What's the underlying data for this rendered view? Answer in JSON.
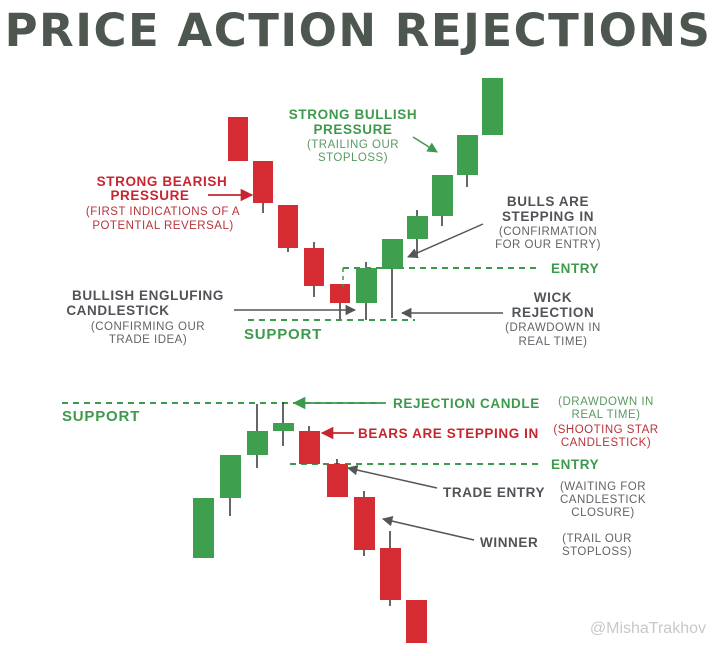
{
  "title": "PRICE ACTION REJECTIONS",
  "top": {
    "strong_bullish": {
      "line1": "STRONG BULLISH",
      "line2": "PRESSURE",
      "sub1": "(TRAILING OUR",
      "sub2": "STOPLOSS)"
    },
    "strong_bearish": {
      "line1": "STRONG BEARISH",
      "line2": "PRESSURE",
      "sub1": "(FIRST INDICATIONS OF A",
      "sub2": "POTENTIAL REVERSAL)"
    },
    "bulls_stepping": {
      "line1": "BULLS ARE",
      "line2": "STEPPING IN",
      "sub1": "(CONFIRMATION",
      "sub2": "FOR OUR ENTRY)"
    },
    "entry": "ENTRY",
    "engulfing": {
      "line1": "BULLISH ENGLUFING",
      "line2": "CANDLESTICK",
      "sub1": "(CONFIRMING OUR",
      "sub2": "TRADE IDEA)"
    },
    "wick_rejection": {
      "line1": "WICK",
      "line2": "REJECTION",
      "sub1": "(DRAWDOWN IN",
      "sub2": "REAL TIME)"
    },
    "support": "SUPPORT"
  },
  "bottom": {
    "support": "SUPPORT",
    "rejection_candle": "REJECTION CANDLE",
    "rejection_sub": {
      "line1": "(DRAWDOWN IN",
      "line2": "REAL TIME)"
    },
    "bears_stepping": "BEARS ARE STEPPING IN",
    "shooting_star": {
      "line1": "(SHOOTING STAR",
      "line2": "CANDLESTICK)"
    },
    "entry": "ENTRY",
    "trade_entry": "TRADE ENTRY",
    "trade_entry_sub": {
      "line1": "(WAITING FOR",
      "line2": "CANDLESTICK",
      "line3": "CLOSURE)"
    },
    "winner": "WINNER",
    "winner_sub": {
      "line1": "(TRAIL OUR",
      "line2": "STOPLOSS)"
    }
  },
  "watermark": "@MishaTrakhov",
  "colors": {
    "bull": "#3e9f4f",
    "bear": "#d52b33",
    "title": "#4e5650",
    "support": "#3d9a4c",
    "arrow": "#555555"
  }
}
